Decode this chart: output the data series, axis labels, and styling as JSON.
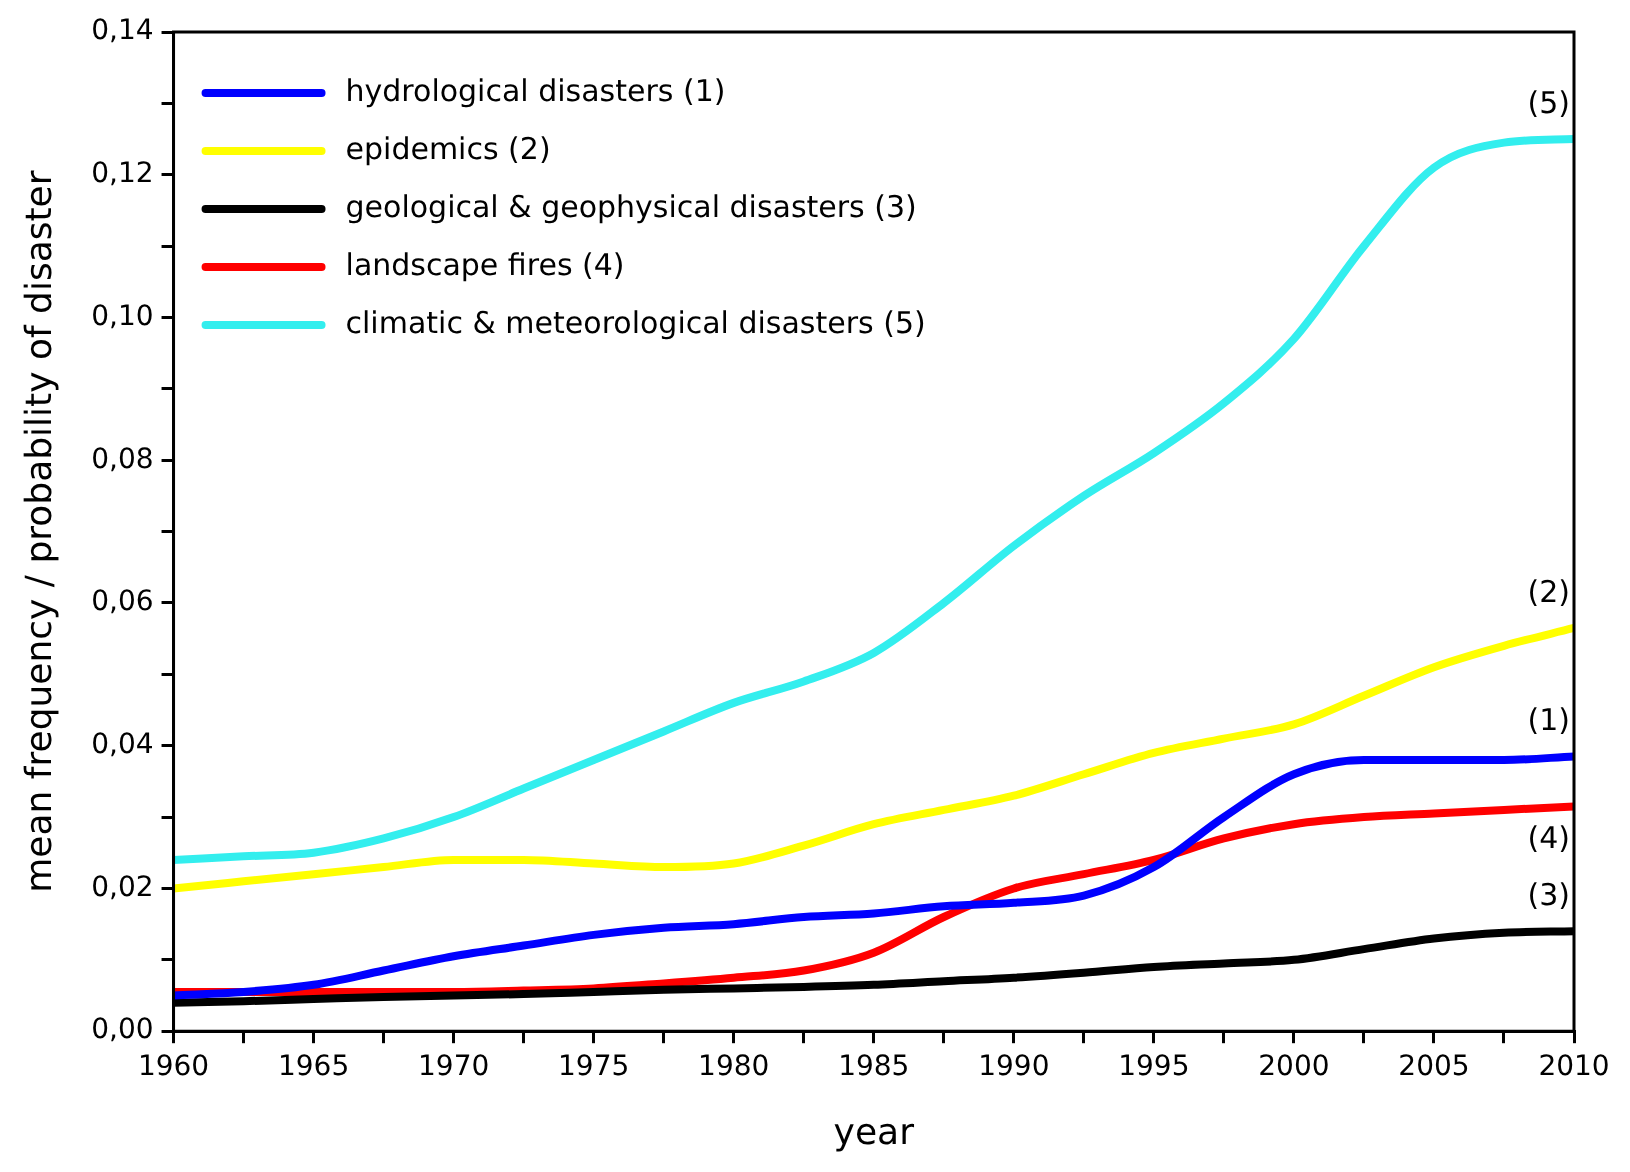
{
  "chart_data": {
    "type": "line",
    "xlabel": "year",
    "ylabel": "mean frequency / probability of disaster",
    "x": [
      1960,
      1962.5,
      1965,
      1967.5,
      1970,
      1972.5,
      1975,
      1977.5,
      1980,
      1982.5,
      1985,
      1987.5,
      1990,
      1992.5,
      1995,
      1997.5,
      2000,
      2002.5,
      2005,
      2007.5,
      2010
    ],
    "series": [
      {
        "name": "hydrological disasters (1)",
        "color": "#0000ff",
        "values": [
          0.005,
          0.0055,
          0.0065,
          0.0085,
          0.0105,
          0.012,
          0.0135,
          0.0145,
          0.015,
          0.016,
          0.0165,
          0.0175,
          0.018,
          0.019,
          0.023,
          0.03,
          0.036,
          0.038,
          0.038,
          0.038,
          0.0385
        ]
      },
      {
        "name": "epidemics (2)",
        "color": "#ffff00",
        "values": [
          0.02,
          0.021,
          0.022,
          0.023,
          0.024,
          0.024,
          0.0235,
          0.023,
          0.0235,
          0.026,
          0.029,
          0.031,
          0.033,
          0.036,
          0.039,
          0.041,
          0.043,
          0.047,
          0.051,
          0.054,
          0.0565
        ]
      },
      {
        "name": "geological & geophysical disasters (3)",
        "color": "#000000",
        "values": [
          0.004,
          0.0042,
          0.0045,
          0.0048,
          0.005,
          0.0052,
          0.0055,
          0.0058,
          0.006,
          0.0062,
          0.0065,
          0.007,
          0.0075,
          0.0082,
          0.009,
          0.0095,
          0.01,
          0.0115,
          0.013,
          0.0138,
          0.014
        ]
      },
      {
        "name": "landscape fires (4)",
        "color": "#ff0000",
        "values": [
          0.0055,
          0.0055,
          0.0055,
          0.0055,
          0.0055,
          0.0057,
          0.006,
          0.0067,
          0.0075,
          0.0085,
          0.011,
          0.016,
          0.02,
          0.022,
          0.024,
          0.027,
          0.029,
          0.03,
          0.0305,
          0.031,
          0.0315
        ]
      },
      {
        "name": "climatic & meteorological disasters (5)",
        "color": "#33eeee",
        "values": [
          0.024,
          0.0245,
          0.025,
          0.027,
          0.03,
          0.034,
          0.038,
          0.042,
          0.046,
          0.049,
          0.053,
          0.06,
          0.068,
          0.075,
          0.081,
          0.088,
          0.097,
          0.11,
          0.121,
          0.1245,
          0.125
        ]
      }
    ],
    "xlim": [
      1960,
      2010
    ],
    "xticks": [
      1960,
      {
        "value": 1962.5,
        "label": null
      },
      1965,
      {
        "value": 1967.5,
        "label": null
      },
      1970,
      {
        "value": 1972.5,
        "label": null
      },
      1975,
      {
        "value": 1977.5,
        "label": null
      },
      1980,
      {
        "value": 1982.5,
        "label": null
      },
      1985,
      {
        "value": 1987.5,
        "label": null
      },
      1990,
      {
        "value": 1992.5,
        "label": null
      },
      1995,
      {
        "value": 1997.5,
        "label": null
      },
      2000,
      {
        "value": 2002.5,
        "label": null
      },
      2005,
      {
        "value": 2007.5,
        "label": null
      },
      2010
    ],
    "ylim": [
      0,
      0.14
    ],
    "yticks": [
      {
        "value": 0,
        "label": "0,00"
      },
      {
        "value": 0.01,
        "label": null
      },
      {
        "value": 0.02,
        "label": "0,02"
      },
      {
        "value": 0.03,
        "label": null
      },
      {
        "value": 0.04,
        "label": "0,04"
      },
      {
        "value": 0.05,
        "label": null
      },
      {
        "value": 0.06,
        "label": "0,06"
      },
      {
        "value": 0.07,
        "label": null
      },
      {
        "value": 0.08,
        "label": "0,08"
      },
      {
        "value": 0.09,
        "label": null
      },
      {
        "value": 0.1,
        "label": "0,10"
      },
      {
        "value": 0.11,
        "label": null
      },
      {
        "value": 0.12,
        "label": "0,12"
      },
      {
        "value": 0.13,
        "label": null
      },
      {
        "value": 0.14,
        "label": "0,14"
      }
    ],
    "annotations": [
      "(1)",
      "(2)",
      "(3)",
      "(4)",
      "(5)"
    ],
    "grid": false,
    "legend": "top left",
    "line_style": "solid"
  }
}
